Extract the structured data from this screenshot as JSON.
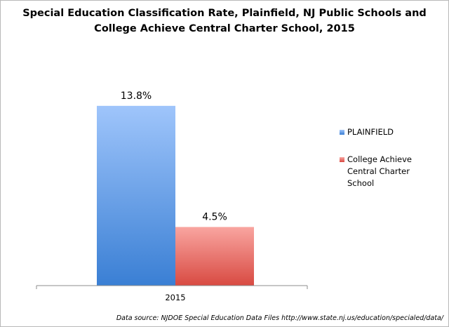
{
  "chart_data": {
    "type": "bar",
    "title_lines": [
      "Special Education Classification Rate, Plainfield, NJ Public Schools and",
      "College Achieve Central Charter School, 2015"
    ],
    "categories": [
      "2015"
    ],
    "series": [
      {
        "name": "PLAINFIELD",
        "values": [
          13.8
        ],
        "data_label": "13.8%",
        "color_top": "#9fc5fb",
        "color_bottom": "#3a7fd4"
      },
      {
        "name": "College Achieve Central Charter School",
        "values": [
          4.5
        ],
        "data_label": "4.5%",
        "color_top": "#f9a5a0",
        "color_bottom": "#d84a42"
      }
    ],
    "ylim": [
      0,
      16
    ],
    "grid": false,
    "legend_position": "right",
    "source": "Data source: NJDOE Special Education Data Files http://www.state.nj.us/education/specialed/data/"
  }
}
